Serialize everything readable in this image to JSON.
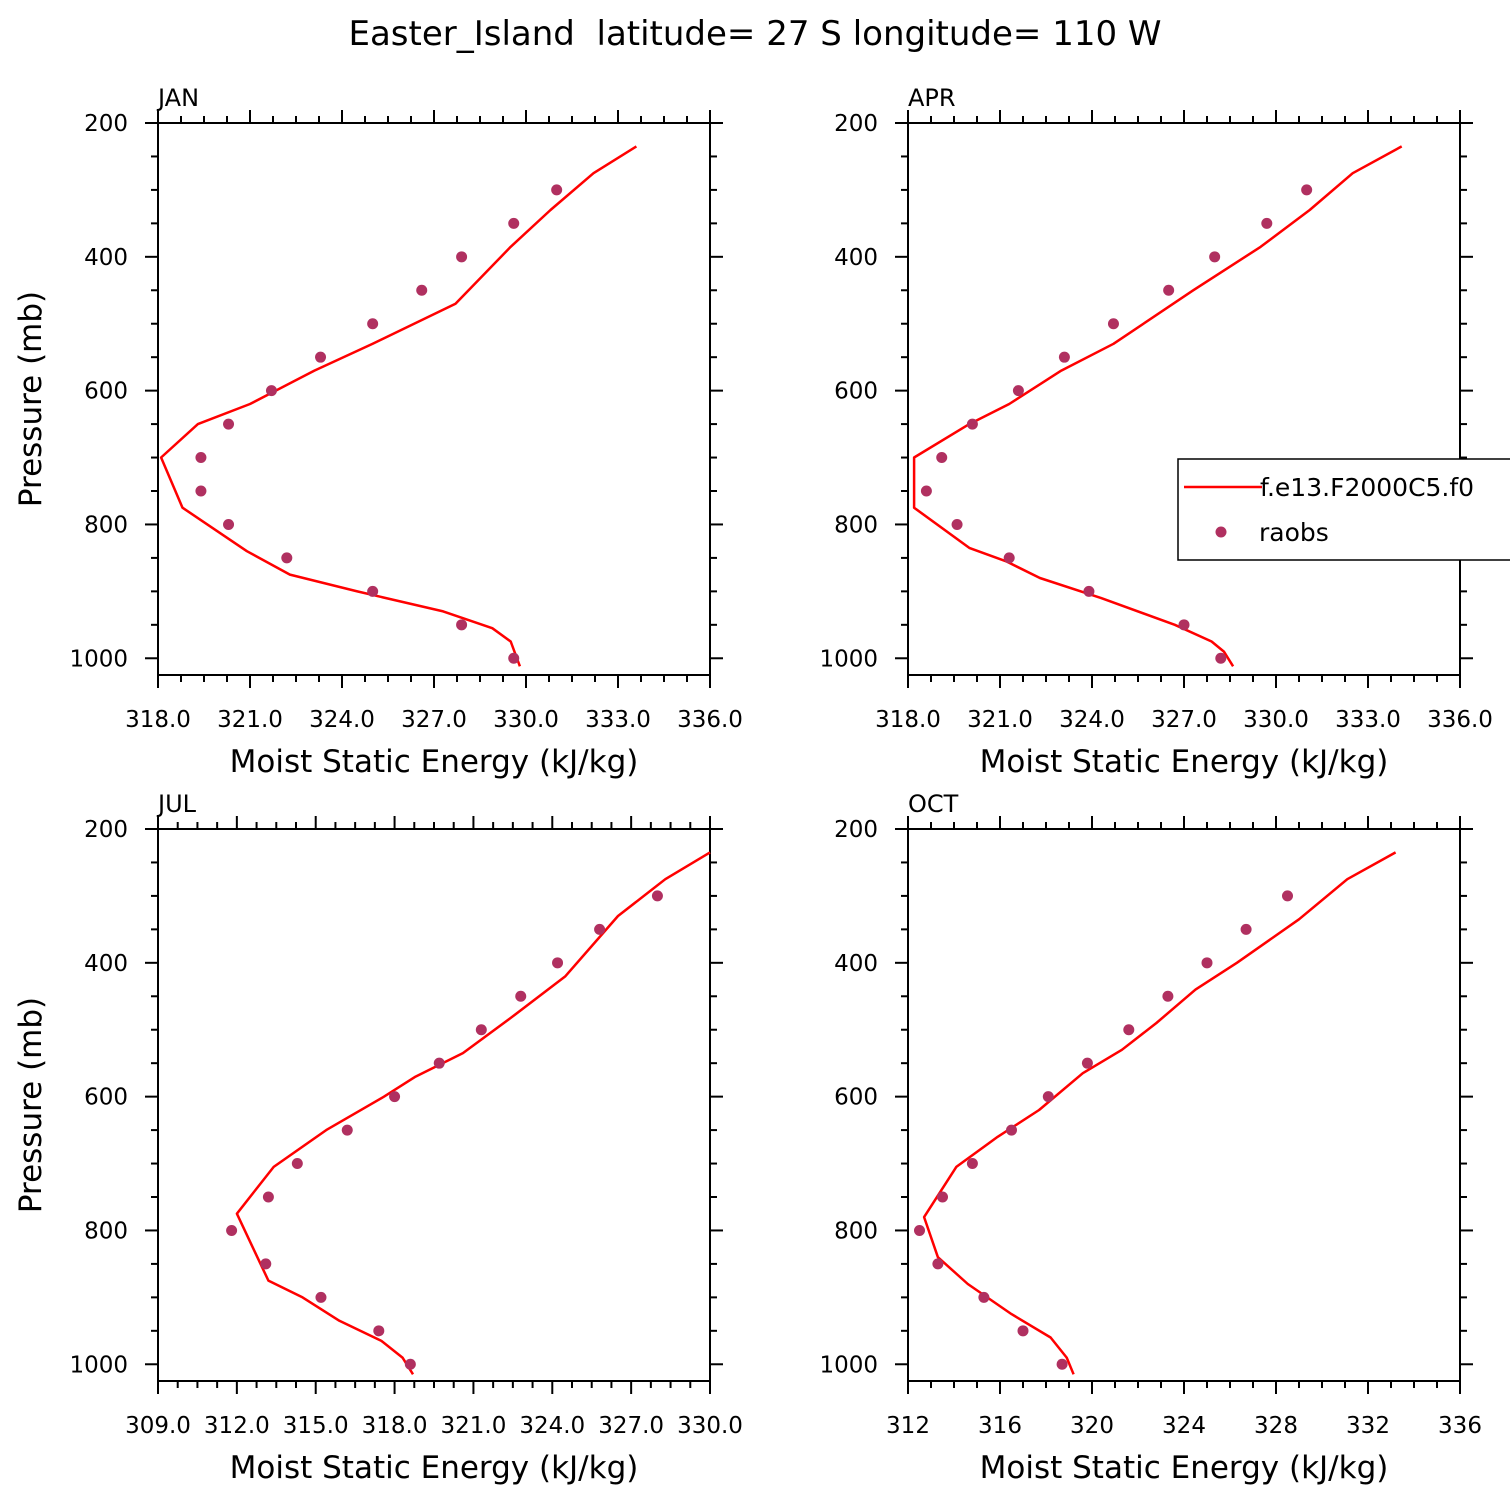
{
  "figure": {
    "title": "Easter_Island  latitude= 27 S longitude= 110 W"
  },
  "colors": {
    "model_line": "#ff0000",
    "raobs_marker": "#b03060",
    "axes": "#000000",
    "background": "#ffffff"
  },
  "legend": {
    "entries": [
      {
        "label": "f.e13.F2000C5.f0",
        "kind": "line"
      },
      {
        "label": "raobs",
        "kind": "marker"
      }
    ]
  },
  "chart_data": [
    {
      "type": "line",
      "panel": "JAN",
      "xlabel": "Moist Static Energy (kJ/kg)",
      "ylabel": "Pressure (mb)",
      "xlim": [
        318.0,
        336.0
      ],
      "ylim": [
        1025,
        200
      ],
      "xticks": [
        "318.0",
        "321.0",
        "324.0",
        "327.0",
        "330.0",
        "333.0",
        "336.0"
      ],
      "yticks": [
        "200",
        "400",
        "600",
        "800",
        "1000"
      ],
      "series": [
        {
          "name": "f.e13.F2000C5.f0",
          "style": "line",
          "x": [
            329.8,
            329.5,
            328.9,
            327.3,
            324.5,
            322.3,
            320.9,
            318.8,
            318.1,
            319.3,
            321.0,
            323.1,
            325.0,
            327.7,
            329.5,
            330.8,
            332.2,
            333.6
          ],
          "y": [
            1012,
            975,
            955,
            930,
            900,
            875,
            840,
            775,
            700,
            650,
            620,
            570,
            530,
            470,
            385,
            330,
            275,
            235
          ]
        },
        {
          "name": "raobs",
          "style": "markers",
          "x": [
            329.6,
            327.9,
            325.0,
            322.2,
            320.3,
            319.4,
            319.4,
            320.3,
            321.7,
            323.3,
            325.0,
            326.6,
            327.9,
            329.6,
            331.0
          ],
          "y": [
            1000,
            950,
            900,
            850,
            800,
            750,
            700,
            650,
            600,
            550,
            500,
            450,
            400,
            350,
            300
          ]
        }
      ]
    },
    {
      "type": "line",
      "panel": "APR",
      "xlabel": "Moist Static Energy (kJ/kg)",
      "ylabel": "",
      "xlim": [
        318.0,
        336.0
      ],
      "ylim": [
        1025,
        200
      ],
      "xticks": [
        "318.0",
        "321.0",
        "324.0",
        "327.0",
        "330.0",
        "333.0",
        "336.0"
      ],
      "yticks": [
        "200",
        "400",
        "600",
        "800",
        "1000"
      ],
      "series": [
        {
          "name": "f.e13.F2000C5.f0",
          "style": "line",
          "x": [
            328.6,
            328.3,
            327.9,
            326.7,
            324.3,
            322.3,
            321.2,
            320.0,
            318.2,
            318.2,
            318.2,
            320.0,
            321.3,
            323.0,
            324.7,
            327.3,
            329.5,
            331.1,
            332.5,
            334.1
          ],
          "y": [
            1012,
            990,
            975,
            950,
            910,
            880,
            855,
            835,
            775,
            740,
            700,
            650,
            620,
            570,
            530,
            450,
            385,
            330,
            275,
            235
          ]
        },
        {
          "name": "raobs",
          "style": "markers",
          "x": [
            328.2,
            327.0,
            323.9,
            321.3,
            319.6,
            318.6,
            319.1,
            320.1,
            321.6,
            323.1,
            324.7,
            326.5,
            328.0,
            329.7,
            331.0
          ],
          "y": [
            1000,
            950,
            900,
            850,
            800,
            750,
            700,
            650,
            600,
            550,
            500,
            450,
            400,
            350,
            300
          ]
        }
      ]
    },
    {
      "type": "line",
      "panel": "JUL",
      "xlabel": "Moist Static Energy (kJ/kg)",
      "ylabel": "Pressure (mb)",
      "xlim": [
        309.0,
        330.0
      ],
      "ylim": [
        1025,
        200
      ],
      "xticks": [
        "309.0",
        "312.0",
        "315.0",
        "318.0",
        "321.0",
        "324.0",
        "327.0",
        "330.0"
      ],
      "yticks": [
        "200",
        "400",
        "600",
        "800",
        "1000"
      ],
      "series": [
        {
          "name": "f.e13.F2000C5.f0",
          "style": "line",
          "x": [
            318.7,
            318.3,
            317.5,
            315.9,
            314.5,
            313.2,
            312.0,
            312.9,
            313.4,
            315.4,
            317.6,
            318.8,
            320.6,
            322.5,
            324.5,
            326.5,
            328.3,
            330.0
          ],
          "y": [
            1015,
            990,
            965,
            935,
            900,
            875,
            775,
            730,
            705,
            650,
            600,
            570,
            535,
            480,
            420,
            330,
            275,
            235
          ]
        },
        {
          "name": "raobs",
          "style": "markers",
          "x": [
            318.6,
            317.4,
            315.2,
            313.1,
            311.8,
            313.2,
            314.3,
            316.2,
            318.0,
            319.7,
            321.3,
            322.8,
            324.2,
            325.8,
            328.0
          ],
          "y": [
            1000,
            950,
            900,
            850,
            800,
            750,
            700,
            650,
            600,
            550,
            500,
            450,
            400,
            350,
            300
          ]
        }
      ]
    },
    {
      "type": "line",
      "panel": "OCT",
      "xlabel": "Moist Static Energy (kJ/kg)",
      "ylabel": "",
      "xlim": [
        312,
        336
      ],
      "ylim": [
        1025,
        200
      ],
      "xticks": [
        "312",
        "316",
        "320",
        "324",
        "328",
        "332",
        "336"
      ],
      "yticks": [
        "200",
        "400",
        "600",
        "800",
        "1000"
      ],
      "series": [
        {
          "name": "f.e13.F2000C5.f0",
          "style": "line",
          "x": [
            319.2,
            318.9,
            318.2,
            316.5,
            314.6,
            313.3,
            312.7,
            314.1,
            315.9,
            317.7,
            319.6,
            321.3,
            322.8,
            324.5,
            326.3,
            329.0,
            331.1,
            333.2
          ],
          "y": [
            1015,
            990,
            960,
            925,
            880,
            840,
            780,
            705,
            660,
            620,
            565,
            530,
            490,
            440,
            400,
            335,
            275,
            235
          ]
        },
        {
          "name": "raobs",
          "style": "markers",
          "x": [
            318.7,
            317.0,
            315.3,
            313.3,
            312.5,
            313.5,
            314.8,
            316.5,
            318.1,
            319.8,
            321.6,
            323.3,
            325.0,
            326.7,
            328.5
          ],
          "y": [
            1000,
            950,
            900,
            850,
            800,
            750,
            700,
            650,
            600,
            550,
            500,
            450,
            400,
            350,
            300
          ]
        }
      ]
    }
  ]
}
